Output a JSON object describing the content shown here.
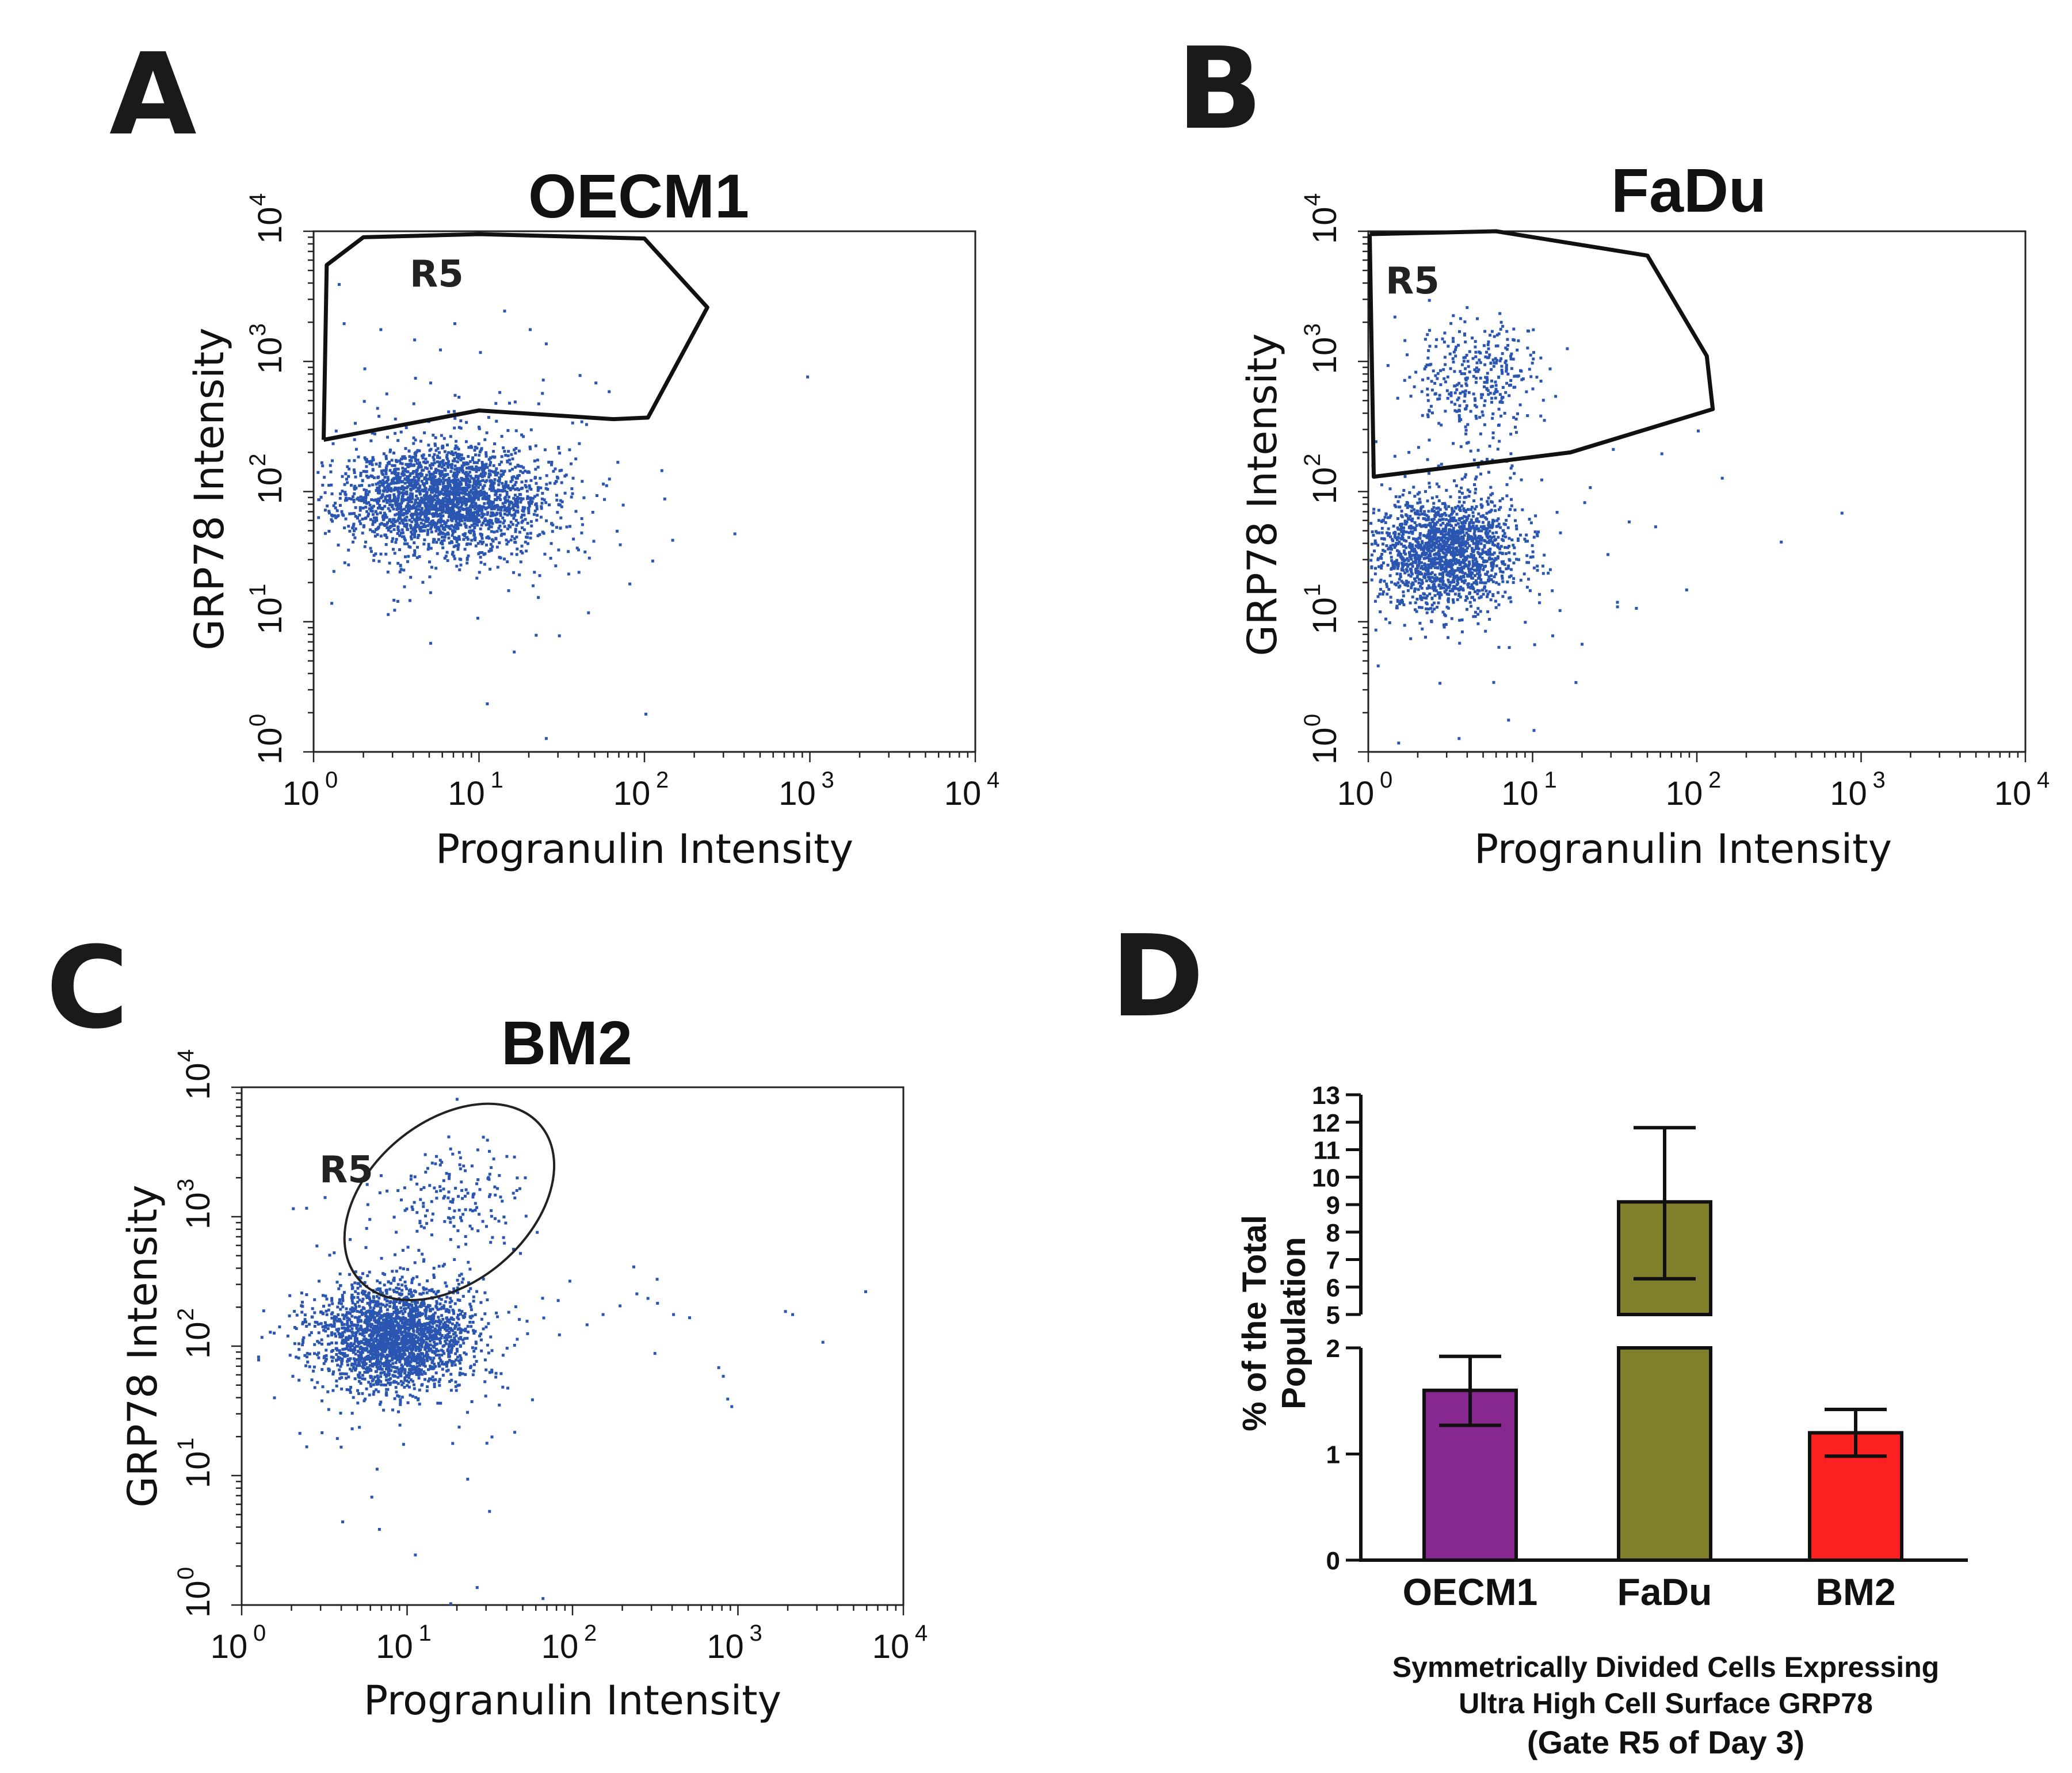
{
  "figure": {
    "panel_letters": [
      "A",
      "B",
      "C",
      "D"
    ]
  },
  "chart_data": [
    {
      "panel": "A",
      "type": "scatter",
      "title": "OECM1",
      "xlabel": "Progranulin Intensity",
      "ylabel": "GRP78 Intensity",
      "xscale": "log",
      "yscale": "log",
      "xlim": [
        1,
        10000
      ],
      "ylim": [
        1,
        10000
      ],
      "tick_base": "10",
      "tick_exponents": [
        "0",
        "1",
        "2",
        "3",
        "4"
      ],
      "color": "#2a55b0",
      "gate": {
        "label": "R5",
        "shape": "polygon",
        "vertices": [
          [
            1.15,
            250
          ],
          [
            1.2,
            5500
          ],
          [
            2,
            9000
          ],
          [
            10,
            9500
          ],
          [
            100,
            8800
          ],
          [
            240,
            2600
          ],
          [
            105,
            370
          ],
          [
            65,
            360
          ],
          [
            10,
            420
          ],
          [
            1.15,
            250
          ]
        ]
      },
      "populations": [
        {
          "cx": 6,
          "cy": 90,
          "sx": 0.3,
          "sy": 0.2,
          "n": 2200
        },
        {
          "cx": 8,
          "cy": 90,
          "sx": 0.45,
          "sy": 0.4,
          "n": 280
        }
      ],
      "points": [
        [
          1.5,
          2000
        ],
        [
          2.5,
          1800
        ],
        [
          4,
          1500
        ],
        [
          7,
          2000
        ],
        [
          10,
          1200
        ],
        [
          14,
          2500
        ],
        [
          20,
          1800
        ],
        [
          25,
          1400
        ],
        [
          40,
          800
        ],
        [
          2,
          900
        ],
        [
          5,
          700
        ],
        [
          60,
          600
        ],
        [
          950,
          780
        ],
        [
          130,
          90
        ],
        [
          110,
          30
        ],
        [
          80,
          20
        ],
        [
          100,
          2
        ],
        [
          25,
          1.3
        ],
        [
          11,
          2.4
        ],
        [
          5,
          7
        ],
        [
          16,
          6
        ],
        [
          30,
          8
        ],
        [
          45,
          12
        ],
        [
          3,
          15
        ],
        [
          70,
          40
        ],
        [
          1.4,
          4000
        ],
        [
          1.3,
          25
        ]
      ]
    },
    {
      "panel": "B",
      "type": "scatter",
      "title": "FaDu",
      "xlabel": "Progranulin Intensity",
      "ylabel": "GRP78 Intensity",
      "xscale": "log",
      "yscale": "log",
      "xlim": [
        1,
        10000
      ],
      "ylim": [
        1,
        10000
      ],
      "tick_base": "10",
      "tick_exponents": [
        "0",
        "1",
        "2",
        "3",
        "4"
      ],
      "color": "#2a55b0",
      "gate": {
        "label": "R5",
        "shape": "polygon",
        "vertices": [
          [
            1.02,
            9500
          ],
          [
            6,
            10000
          ],
          [
            50,
            6500
          ],
          [
            115,
            1100
          ],
          [
            125,
            430
          ],
          [
            17,
            200
          ],
          [
            1.08,
            130
          ],
          [
            1.02,
            9500
          ]
        ]
      },
      "populations": [
        {
          "cx": 2.8,
          "cy": 35,
          "sx": 0.22,
          "sy": 0.22,
          "n": 1600
        },
        {
          "cx": 4.5,
          "cy": 800,
          "sx": 0.2,
          "sy": 0.2,
          "n": 340
        },
        {
          "cx": 3,
          "cy": 40,
          "sx": 0.4,
          "sy": 0.45,
          "n": 160
        }
      ],
      "points": [
        [
          140,
          130
        ],
        [
          750,
          70
        ],
        [
          320,
          42
        ],
        [
          55,
          55
        ],
        [
          38,
          60
        ],
        [
          42,
          13
        ],
        [
          85,
          18
        ],
        [
          18,
          3.5
        ],
        [
          7,
          1.8
        ],
        [
          3.5,
          1.3
        ],
        [
          1.5,
          1.2
        ],
        [
          10,
          1.5
        ],
        [
          100,
          300
        ],
        [
          60,
          200
        ],
        [
          22,
          110
        ],
        [
          13,
          8
        ]
      ]
    },
    {
      "panel": "C",
      "type": "scatter",
      "title": "BM2",
      "xlabel": "Progranulin Intensity",
      "ylabel": "GRP78 Intensity",
      "xscale": "log",
      "yscale": "log",
      "xlim": [
        1,
        10000
      ],
      "ylim": [
        1,
        10000
      ],
      "tick_base": "10",
      "tick_exponents": [
        "0",
        "1",
        "2",
        "3",
        "4"
      ],
      "color": "#2a55b0",
      "gate": {
        "label": "R5",
        "shape": "ellipse",
        "center": [
          18,
          1300
        ],
        "semi_axes_decades": [
          0.72,
          0.62
        ],
        "rotation_deg": -40
      },
      "populations": [
        {
          "cx": 8,
          "cy": 120,
          "sx": 0.22,
          "sy": 0.2,
          "n": 2100
        },
        {
          "cx": 20,
          "cy": 1400,
          "sx": 0.18,
          "sy": 0.2,
          "n": 150
        },
        {
          "cx": 9,
          "cy": 130,
          "sx": 0.4,
          "sy": 0.45,
          "n": 220
        }
      ],
      "points": [
        [
          230,
          420
        ],
        [
          240,
          260
        ],
        [
          280,
          240
        ],
        [
          320,
          220
        ],
        [
          190,
          210
        ],
        [
          120,
          150
        ],
        [
          150,
          180
        ],
        [
          400,
          180
        ],
        [
          500,
          170
        ],
        [
          750,
          70
        ],
        [
          800,
          60
        ],
        [
          850,
          40
        ],
        [
          900,
          35
        ],
        [
          1900,
          190
        ],
        [
          2100,
          180
        ],
        [
          3200,
          110
        ],
        [
          5800,
          270
        ],
        [
          30,
          4000
        ],
        [
          26,
          1.4
        ],
        [
          65,
          1.15
        ],
        [
          18,
          1.05
        ],
        [
          11,
          2.5
        ],
        [
          6,
          7
        ],
        [
          4,
          4.5
        ],
        [
          3,
          22
        ],
        [
          2,
          60
        ],
        [
          1.3,
          120
        ]
      ]
    },
    {
      "panel": "D",
      "type": "bar",
      "ylabel": "% of the Total Population",
      "ylabel_lines": [
        "% of the Total",
        "Population"
      ],
      "categories": [
        "OECM1",
        "FaDu",
        "BM2"
      ],
      "values": [
        1.6,
        9.1,
        1.2
      ],
      "errors_low": [
        1.27,
        6.3,
        0.98
      ],
      "errors_high": [
        1.92,
        11.8,
        1.42
      ],
      "colors": [
        "#872890",
        "#807f2c",
        "#fc2020"
      ],
      "y_axis_break": [
        2,
        5
      ],
      "lower_segment": {
        "range": [
          0,
          2
        ],
        "ticks": [
          "0",
          "1",
          "2"
        ]
      },
      "upper_segment": {
        "range": [
          5,
          13
        ],
        "ticks": [
          "5",
          "6",
          "7",
          "8",
          "9",
          "10",
          "11",
          "12",
          "13"
        ]
      },
      "caption": [
        "Symmetrically Divided Cells Expressing",
        "Ultra High Cell Surface GRP78",
        "(Gate R5 of Day 3)"
      ]
    }
  ]
}
